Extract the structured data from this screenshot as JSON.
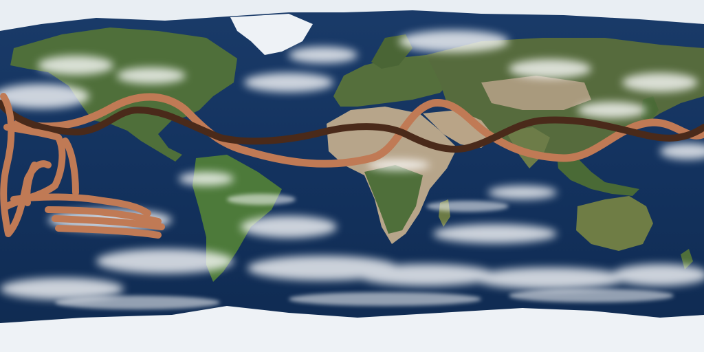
{
  "map": {
    "projection": "equirectangular",
    "base": "satellite-earth-with-clouds",
    "colors": {
      "ocean": "#13325e",
      "ocean_deep": "#0c2448",
      "land_green": "#4f6f3a",
      "land_dark_green": "#3d5a2c",
      "desert": "#b7a58a",
      "ice": "#eef2f6",
      "cloud": "#ffffff"
    },
    "overlays": [
      {
        "name": "dark-brown-line",
        "color": "#4a2a1a"
      },
      {
        "name": "light-brown-line",
        "color": "#c07a55"
      },
      {
        "name": "light-brown-scribble",
        "color": "#c07a55"
      }
    ]
  }
}
